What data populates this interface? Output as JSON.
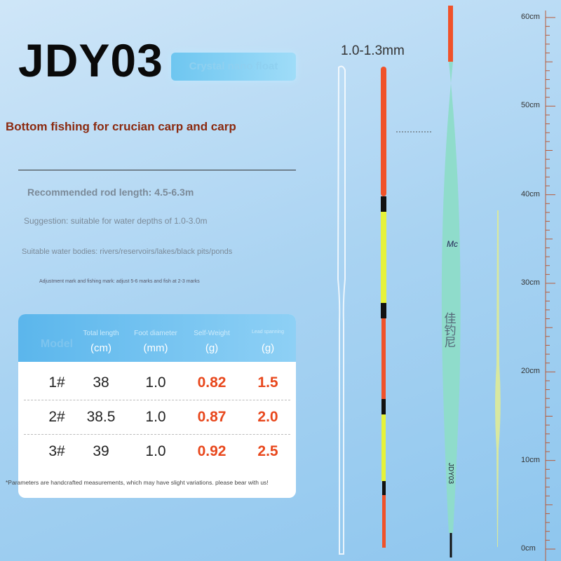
{
  "header": {
    "title": "JDY03",
    "badge": "Crystal nano float"
  },
  "subtitle": "Bottom fishing for crucian carp and carp",
  "specs": [
    "Recommended rod length: 4.5-6.3m",
    "Suggestion: suitable for water depths of 1.0-3.0m",
    "Suitable water bodies: rivers/reservoirs/lakes/black pits/ponds",
    "Adjustment mark and fishing mark: adjust 5-6 marks and fish at 2-3 marks"
  ],
  "table": {
    "columns": [
      {
        "label": "Model"
      },
      {
        "label": "Total length",
        "unit": "(cm)"
      },
      {
        "label": "Foot diameter",
        "unit": "(mm)"
      },
      {
        "label": "Self-Weight",
        "unit": "(g)"
      },
      {
        "label": "Lead spanning",
        "unit": "(g)"
      }
    ],
    "rows": [
      [
        "1#",
        "38",
        "1.0",
        "0.82",
        "1.5"
      ],
      [
        "2#",
        "38.5",
        "1.0",
        "0.87",
        "2.0"
      ],
      [
        "3#",
        "39",
        "1.0",
        "0.92",
        "2.5"
      ]
    ]
  },
  "footnote": "*Parameters are handcrafted measurements, which may have slight variations. please bear with us!",
  "diameter_label": "1.0-1.3mm",
  "float_text": {
    "brand": "Mc",
    "chinese": "佳钓尼",
    "model": "JDY03"
  },
  "ruler": [
    "60cm",
    "50cm",
    "40cm",
    "30cm",
    "20cm",
    "10cm",
    "0cm"
  ]
}
